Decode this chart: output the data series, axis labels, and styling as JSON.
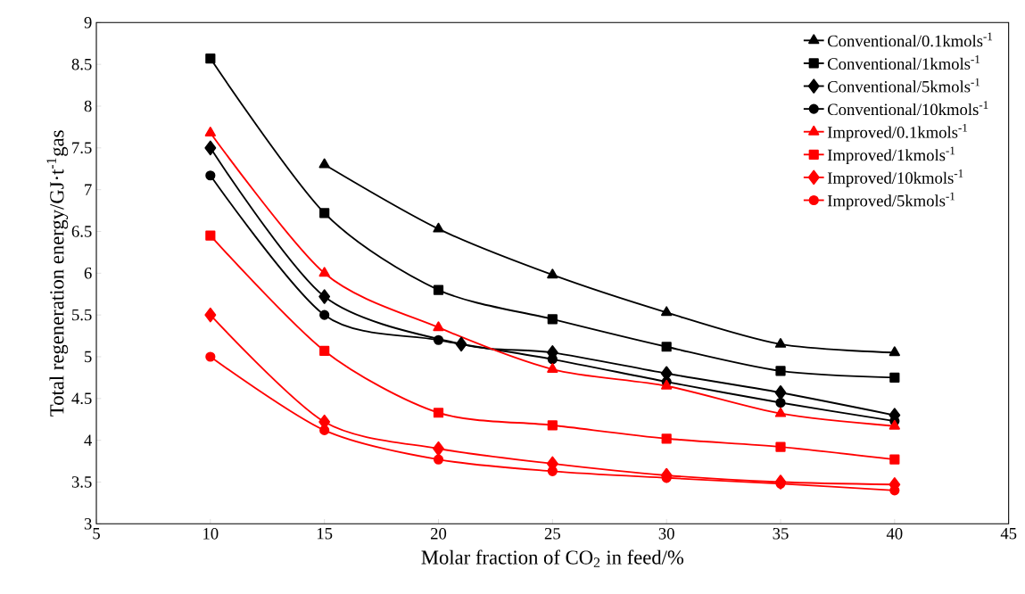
{
  "chart_data": {
    "type": "line",
    "xlabel": "Molar fraction of CO$_{2}$ in feed/%",
    "ylabel": "Total regeneration energy/GJ·t$^{-1}$gas",
    "x": [
      10,
      15,
      20,
      25,
      30,
      35,
      40
    ],
    "series": [
      {
        "name": "Conventional/0.1kmols$^{-1}$",
        "color": "#000000",
        "marker": "triangle",
        "values": [
          null,
          7.3,
          6.53,
          5.98,
          5.53,
          5.15,
          5.05
        ]
      },
      {
        "name": "Conventional/1kmols$^{-1}$",
        "color": "#000000",
        "marker": "square",
        "values": [
          8.57,
          6.72,
          5.8,
          5.45,
          5.12,
          4.83,
          4.75
        ]
      },
      {
        "name": "Conventional/5kmols$^{-1}$",
        "color": "#000000",
        "marker": "diamond",
        "x": [
          10,
          15,
          21,
          25,
          30,
          35,
          40
        ],
        "values": [
          7.5,
          5.72,
          5.15,
          5.05,
          4.8,
          4.57,
          4.3
        ]
      },
      {
        "name": "Conventional/10kmols$^{-1}$",
        "color": "#000000",
        "marker": "circle",
        "values": [
          7.17,
          5.5,
          5.2,
          4.97,
          4.7,
          4.45,
          4.23
        ]
      },
      {
        "name": "Improved/0.1kmols$^{-1}$",
        "color": "#ff0000",
        "marker": "triangle",
        "values": [
          7.68,
          6.0,
          5.35,
          4.85,
          4.65,
          4.32,
          4.17
        ]
      },
      {
        "name": "Improved/1kmols$^{-1}$",
        "color": "#ff0000",
        "marker": "square",
        "values": [
          6.45,
          5.07,
          4.33,
          4.18,
          4.02,
          3.92,
          3.77
        ]
      },
      {
        "name": "Improved/10kmols$^{-1}$",
        "color": "#ff0000",
        "marker": "diamond",
        "values": [
          5.5,
          4.22,
          3.9,
          3.72,
          3.58,
          3.5,
          3.47
        ]
      },
      {
        "name": "Improved/5kmols$^{-1}$",
        "color": "#ff0000",
        "marker": "circle",
        "values": [
          5.0,
          4.12,
          3.77,
          3.63,
          3.55,
          3.48,
          3.4
        ]
      }
    ],
    "xlim": [
      5,
      45
    ],
    "ylim": [
      3,
      9
    ],
    "xticks": [
      5,
      10,
      15,
      20,
      25,
      30,
      35,
      40,
      45
    ],
    "yticks": [
      3,
      3.5,
      4,
      4.5,
      5,
      5.5,
      6,
      6.5,
      7,
      7.5,
      8,
      8.5,
      9
    ],
    "legend": "top right",
    "grid": false,
    "line_style": "solid"
  }
}
